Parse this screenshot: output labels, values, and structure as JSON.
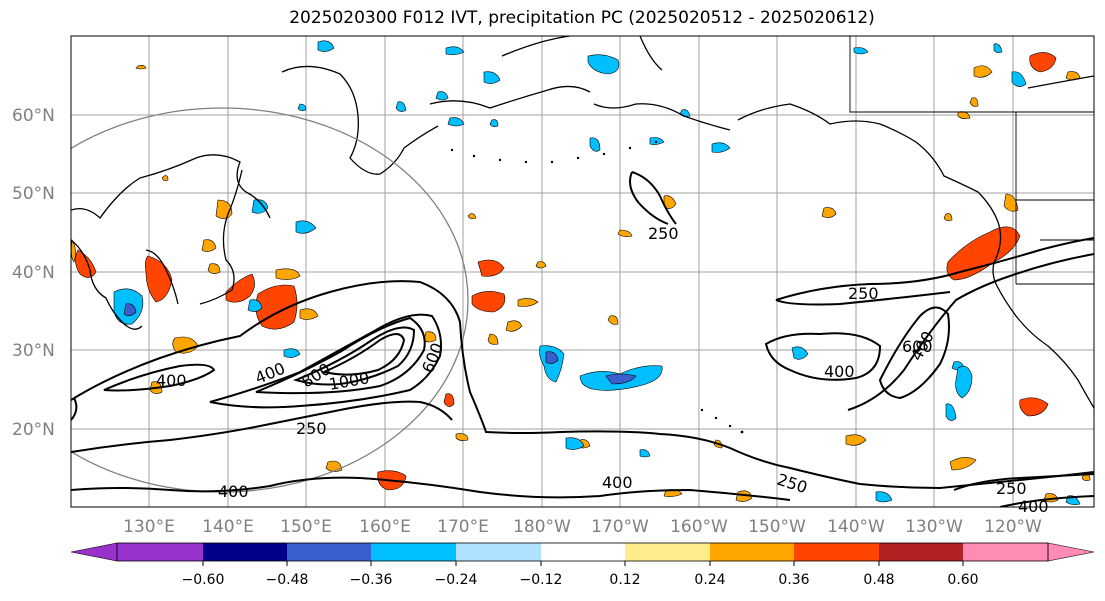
{
  "title": "2025020300 F012 IVT, precipitation PC (2025020512 - 2025020612)",
  "lat_labels": [
    "60°N",
    "50°N",
    "40°N",
    "30°N",
    "20°N"
  ],
  "lon_labels": [
    "130°E",
    "140°E",
    "150°E",
    "160°E",
    "170°E",
    "180°W",
    "170°W",
    "160°W",
    "150°W",
    "140°W",
    "130°W",
    "120°W"
  ],
  "contour_labels": [
    "250",
    "250",
    "250",
    "250",
    "250",
    "400",
    "400",
    "400",
    "400",
    "400",
    "400",
    "400",
    "600",
    "600",
    "800",
    "1000",
    "400"
  ],
  "colorbar": {
    "tick_labels": [
      "−0.60",
      "−0.48",
      "−0.36",
      "−0.24",
      "−0.12",
      "0.12",
      "0.24",
      "0.36",
      "0.48",
      "0.60"
    ],
    "colors": [
      "#9932cc",
      "#00008b",
      "#3a5fcd",
      "#00bfff",
      "#b0e2ff",
      "#ffffff",
      "#ffec8b",
      "#ffa500",
      "#ff4500",
      "#b22222",
      "#ff8cb4"
    ]
  },
  "colors": {
    "neg_fill": "#00bfff",
    "neg_dark": "#3a5fcd",
    "pos_fill": "#ffa500",
    "pos_strong": "#ff4500",
    "pos_light": "#ffec8b",
    "gridline": "#a0a0a0",
    "circle": "#808080"
  }
}
